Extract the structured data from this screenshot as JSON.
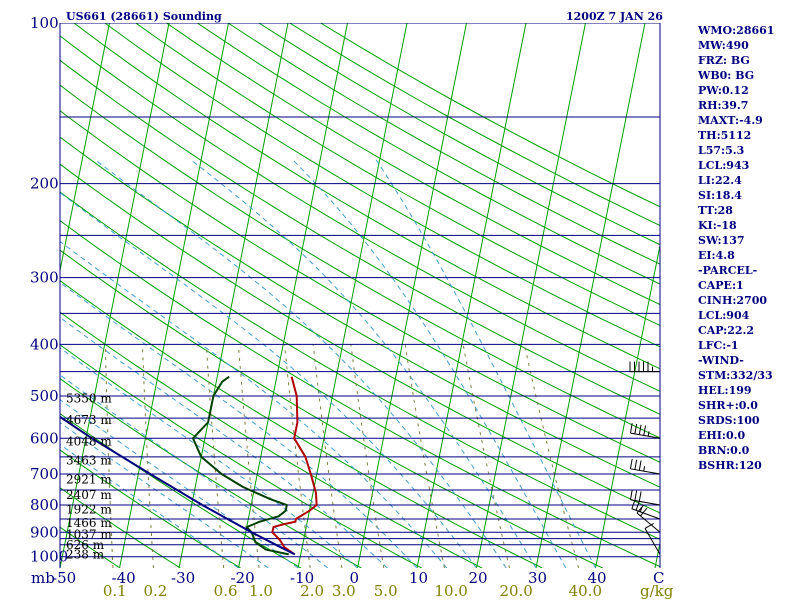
{
  "header": {
    "station": "US661 (28661) Sounding",
    "time": "1200Z  7 JAN 26"
  },
  "chart_data": {
    "type": "skew-t log-p sounding",
    "title": "US661 (28661) Sounding",
    "pressure_axis": {
      "label": "mb",
      "range": [
        1000,
        100
      ],
      "ticks": [
        100,
        200,
        300,
        400,
        500,
        600,
        700,
        800,
        900,
        1000
      ],
      "minor_isobars": [
        150,
        250,
        350,
        450,
        550,
        650,
        750,
        850,
        925,
        950
      ]
    },
    "temperature_axis": {
      "unit": "C",
      "ticks": [
        -50,
        -40,
        -30,
        -20,
        -10,
        0,
        10,
        20,
        30,
        40
      ],
      "tick_labels": [
        "-50",
        "-40",
        "-30",
        "-20",
        "-10",
        "0",
        "10",
        "20",
        "30",
        "40"
      ]
    },
    "mixing_ratio_labels": [
      "0.1",
      "0.2",
      "0.6",
      "1.0",
      "2.0",
      "3.0",
      "5.0",
      "10.0",
      "20.0",
      "40.0"
    ],
    "mixing_ratio_unit": "g/kg",
    "height_labels": [
      {
        "text": "238 m",
        "p": 990
      },
      {
        "text": "626 m",
        "p": 950
      },
      {
        "text": "1037 m",
        "p": 908
      },
      {
        "text": "1466 m",
        "p": 865
      },
      {
        "text": "1922 m",
        "p": 816
      },
      {
        "text": "2407 m",
        "p": 766
      },
      {
        "text": "2921 m",
        "p": 716
      },
      {
        "text": "3463 m",
        "p": 661
      },
      {
        "text": "4048 m",
        "p": 608
      },
      {
        "text": "4673 m",
        "p": 555
      },
      {
        "text": "5350 m",
        "p": 505
      }
    ],
    "series": [
      {
        "name": "temperature",
        "color": "#b00000",
        "points": [
          [
            990,
            -11
          ],
          [
            960,
            -13
          ],
          [
            930,
            -14
          ],
          [
            900,
            -15.5
          ],
          [
            880,
            -15.5
          ],
          [
            870,
            -14
          ],
          [
            860,
            -12
          ],
          [
            850,
            -12
          ],
          [
            820,
            -10
          ],
          [
            800,
            -9
          ],
          [
            760,
            -9.5
          ],
          [
            700,
            -11
          ],
          [
            650,
            -12.5
          ],
          [
            600,
            -15
          ],
          [
            560,
            -15
          ],
          [
            500,
            -16
          ],
          [
            460,
            -17.5
          ]
        ]
      },
      {
        "name": "dewpoint",
        "color": "#004000",
        "points": [
          [
            990,
            -12
          ],
          [
            970,
            -16
          ],
          [
            940,
            -18
          ],
          [
            900,
            -19
          ],
          [
            880,
            -20
          ],
          [
            860,
            -18
          ],
          [
            840,
            -15
          ],
          [
            820,
            -14
          ],
          [
            800,
            -14
          ],
          [
            780,
            -17
          ],
          [
            740,
            -22
          ],
          [
            700,
            -26
          ],
          [
            650,
            -30
          ],
          [
            600,
            -32
          ],
          [
            560,
            -30
          ],
          [
            500,
            -30
          ],
          [
            470,
            -29
          ],
          [
            460,
            -28
          ]
        ]
      },
      {
        "name": "parcel",
        "color": "#000080",
        "points": [
          [
            990,
            -11
          ],
          [
            950,
            -14.5
          ],
          [
            900,
            -19
          ],
          [
            850,
            -23.5
          ],
          [
            800,
            -28.2
          ],
          [
            700,
            -38
          ],
          [
            600,
            -49
          ],
          [
            500,
            -61
          ],
          [
            400,
            -74
          ],
          [
            300,
            -89
          ],
          [
            200,
            -108
          ],
          [
            150,
            -120
          ],
          [
            125,
            -127
          ]
        ]
      }
    ],
    "wind_barbs": [
      {
        "p": 990,
        "dir": 330,
        "kt": 10
      },
      {
        "p": 900,
        "dir": 310,
        "kt": 20
      },
      {
        "p": 850,
        "dir": 290,
        "kt": 25
      },
      {
        "p": 800,
        "dir": 280,
        "kt": 30
      },
      {
        "p": 700,
        "dir": 280,
        "kt": 35
      },
      {
        "p": 600,
        "dir": 280,
        "kt": 45
      },
      {
        "p": 450,
        "dir": 270,
        "kt": 55
      }
    ],
    "colors": {
      "isobar": "#000080",
      "isotherm": "#00a000",
      "dry_adiabat": "#00a000",
      "moist_adiabat": "#40a0d0",
      "mixing_ratio": "#808040",
      "background": "#ffffff"
    }
  },
  "indices": [
    "WMO:28661",
    "MW:490",
    "FRZ: BG",
    "WB0: BG",
    "PW:0.12",
    "RH:39.7",
    "MAXT:-4.9",
    "TH:5112",
    "L57:5.3",
    "LCL:943",
    "LI:22.4",
    "SI:18.4",
    "TT:28",
    "KI:-18",
    "SW:137",
    "EI:4.8",
    "-PARCEL-",
    "CAPE:1",
    "CINH:2700",
    "LCL:904",
    "CAP:22.2",
    "LFC:-1",
    "-WIND-",
    "STM:332/33",
    "HEL:199",
    "SHR+:0.0",
    "SRDS:100",
    "EHI:0.0",
    "BRN:0.0",
    "BSHR:120"
  ]
}
